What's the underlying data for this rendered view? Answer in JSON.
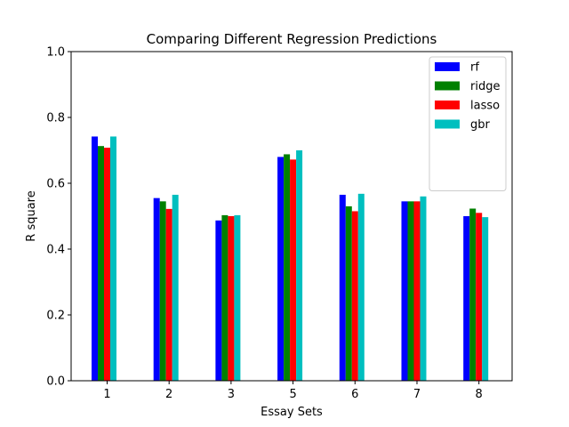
{
  "chart_data": {
    "type": "bar",
    "title": "Comparing Different Regression Predictions",
    "xlabel": "Essay Sets",
    "ylabel": "R square",
    "ylim": [
      0,
      1.0
    ],
    "yticks": [
      "0.0",
      "0.2",
      "0.4",
      "0.6",
      "0.8",
      "1.0"
    ],
    "categories": [
      "1",
      "2",
      "3",
      "5",
      "6",
      "7",
      "8"
    ],
    "grid": false,
    "legend_position": "top-right",
    "series": [
      {
        "name": "rf",
        "color": "#0000ff",
        "values": [
          0.742,
          0.555,
          0.487,
          0.68,
          0.565,
          0.545,
          0.5
        ]
      },
      {
        "name": "ridge",
        "color": "#008000",
        "values": [
          0.713,
          0.545,
          0.503,
          0.688,
          0.53,
          0.545,
          0.523
        ]
      },
      {
        "name": "lasso",
        "color": "#ff0000",
        "values": [
          0.708,
          0.522,
          0.5,
          0.672,
          0.515,
          0.545,
          0.51
        ]
      },
      {
        "name": "gbr",
        "color": "#00bfbf",
        "values": [
          0.742,
          0.565,
          0.503,
          0.7,
          0.568,
          0.56,
          0.497
        ]
      }
    ]
  }
}
